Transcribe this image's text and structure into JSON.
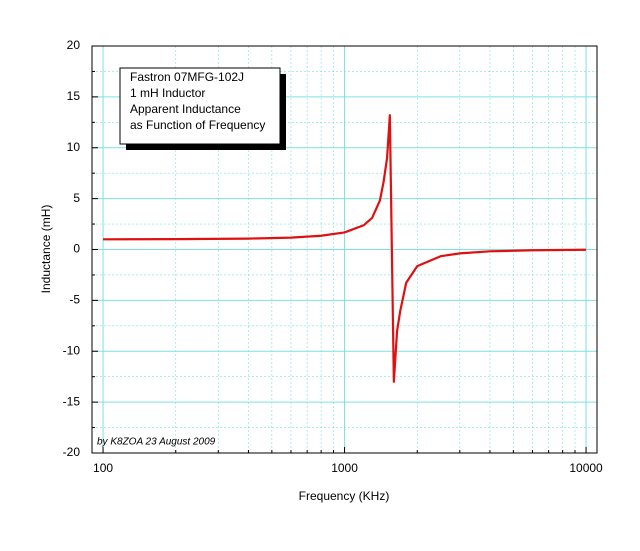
{
  "chart_data": {
    "type": "line",
    "title_lines": [
      "Fastron 07MFG-102J",
      "1 mH Inductor",
      "Apparent Inductance",
      "as Function of Frequency"
    ],
    "annotation": "by K8ZOA 23 August 2009",
    "xlabel": "Frequency (KHz)",
    "ylabel": "Inductance (mH)",
    "x": [
      100,
      200,
      400,
      600,
      800,
      1000,
      1200,
      1300,
      1400,
      1450,
      1500,
      1540,
      1600,
      1650,
      1700,
      1800,
      2000,
      2500,
      3000,
      4000,
      6000,
      10000
    ],
    "values": [
      1.0,
      1.02,
      1.07,
      1.17,
      1.35,
      1.68,
      2.38,
      3.1,
      4.8,
      6.6,
      9.0,
      13.2,
      -13.0,
      -8.0,
      -6.06,
      -3.27,
      -1.63,
      -0.66,
      -0.38,
      -0.18,
      -0.074,
      -0.025
    ],
    "color": "#e01010",
    "xscale": "log",
    "xlim": [
      90,
      11100
    ],
    "xticks": [
      100,
      1000,
      10000
    ],
    "xminorticks": [
      200,
      300,
      400,
      500,
      600,
      700,
      800,
      900,
      2000,
      3000,
      4000,
      5000,
      6000,
      7000,
      8000,
      9000
    ],
    "ylim": [
      -20,
      20
    ],
    "yticks": [
      -20,
      -15,
      -10,
      -5,
      0,
      5,
      10,
      15,
      20
    ],
    "yminorticks": [
      -17.5,
      -12.5,
      -7.5,
      -2.5,
      2.5,
      7.5,
      12.5,
      17.5
    ],
    "grid": true,
    "grid_color": "#7fe0e0"
  }
}
